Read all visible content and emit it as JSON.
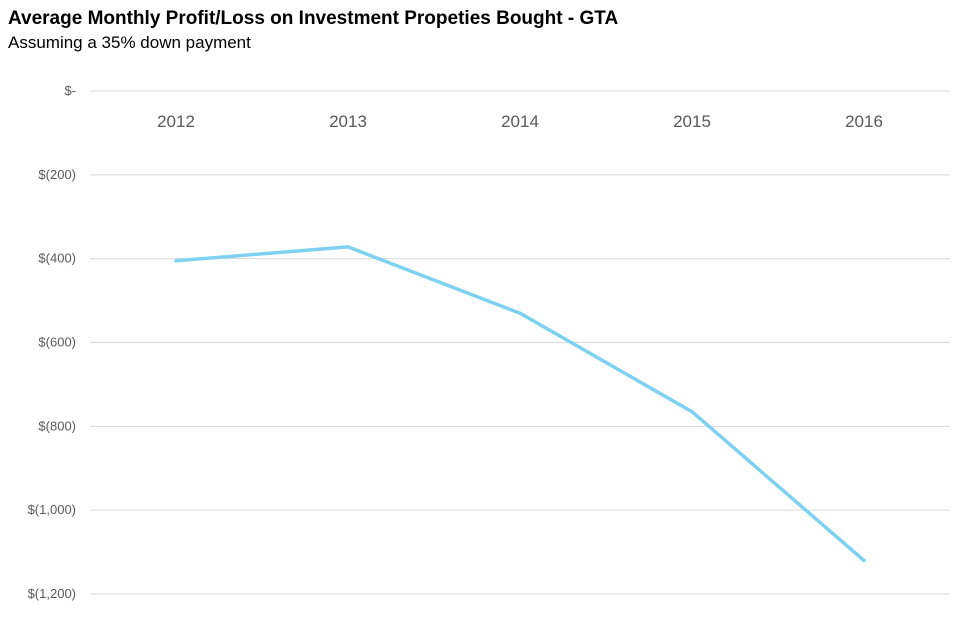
{
  "chart_data": {
    "type": "line",
    "title": "Average Monthly Profit/Loss on Investment Propeties Bought - GTA",
    "subtitle": "Assuming a 35% down payment",
    "xlabel": "",
    "ylabel": "",
    "categories": [
      "2012",
      "2013",
      "2014",
      "2015",
      "2016"
    ],
    "series": [
      {
        "name": "Average Monthly Profit/Loss",
        "values": [
          -405,
          -372,
          -530,
          -765,
          -1120
        ],
        "color": "#7fd1f2"
      }
    ],
    "ylim": [
      -1200,
      0
    ],
    "yticks": [
      0,
      -200,
      -400,
      -600,
      -800,
      -1000,
      -1200
    ],
    "ytick_labels": [
      "$-",
      "$(200)",
      "$(400)",
      "$(600)",
      "$(800)",
      "$(1,000)",
      "$(1,200)"
    ],
    "x_axis_position": "top",
    "grid": true,
    "legend": "none",
    "gridline_color": "#d9d9d9",
    "axis_text_color": "#595959"
  }
}
